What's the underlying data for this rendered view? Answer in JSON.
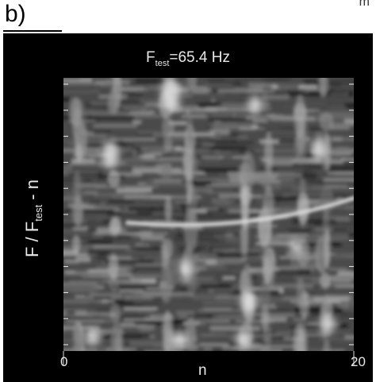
{
  "panel": {
    "label": "b)",
    "corner_text": "m"
  },
  "chart_data": {
    "type": "heatmap",
    "title_main": "F",
    "title_sub": "test",
    "title_rest": "=65.4 Hz",
    "ylabel_main": "F / F",
    "ylabel_sub": "test",
    "ylabel_rest": " - n",
    "xlabel": "n",
    "x_tick_labels": [
      "0",
      "20"
    ],
    "xlim": [
      0,
      20
    ],
    "colormap": "grayscale",
    "features": {
      "ridge_color": "#d9d9d9",
      "background_color": "#000000"
    }
  }
}
